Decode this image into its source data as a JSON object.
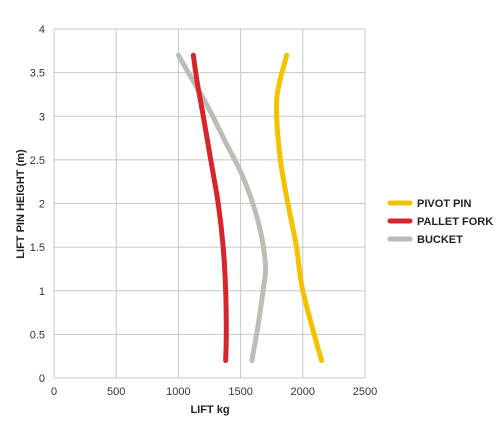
{
  "chart_data": {
    "type": "line",
    "xlabel": "LIFT kg",
    "ylabel": "LIFT PIN HEIGHT (m)",
    "xlim": [
      0,
      2500
    ],
    "ylim": [
      0,
      4
    ],
    "xticks": [
      0,
      500,
      1000,
      1500,
      2000,
      2500
    ],
    "yticks": [
      0,
      0.5,
      1,
      1.5,
      2,
      2.5,
      3,
      3.5,
      4
    ],
    "grid": true,
    "legend_position": "right",
    "series": [
      {
        "name": "PIVOT PIN",
        "color": "#F5C200",
        "points": [
          [
            2150,
            0.2
          ],
          [
            2000,
            1.0
          ],
          [
            1950,
            1.5
          ],
          [
            1880,
            2.0
          ],
          [
            1820,
            2.5
          ],
          [
            1790,
            3.0
          ],
          [
            1800,
            3.3
          ],
          [
            1870,
            3.7
          ]
        ]
      },
      {
        "name": "PALLET FORK",
        "color": "#D7262B",
        "points": [
          [
            1380,
            0.2
          ],
          [
            1385,
            0.5
          ],
          [
            1380,
            1.0
          ],
          [
            1360,
            1.5
          ],
          [
            1320,
            2.0
          ],
          [
            1260,
            2.5
          ],
          [
            1200,
            3.0
          ],
          [
            1150,
            3.4
          ],
          [
            1120,
            3.7
          ]
        ]
      },
      {
        "name": "BUCKET",
        "color": "#BDBDB8",
        "points": [
          [
            1590,
            0.2
          ],
          [
            1640,
            0.6
          ],
          [
            1680,
            1.0
          ],
          [
            1700,
            1.3
          ],
          [
            1640,
            1.8
          ],
          [
            1520,
            2.3
          ],
          [
            1380,
            2.7
          ],
          [
            1240,
            3.1
          ],
          [
            1100,
            3.45
          ],
          [
            1000,
            3.7
          ]
        ]
      }
    ]
  }
}
